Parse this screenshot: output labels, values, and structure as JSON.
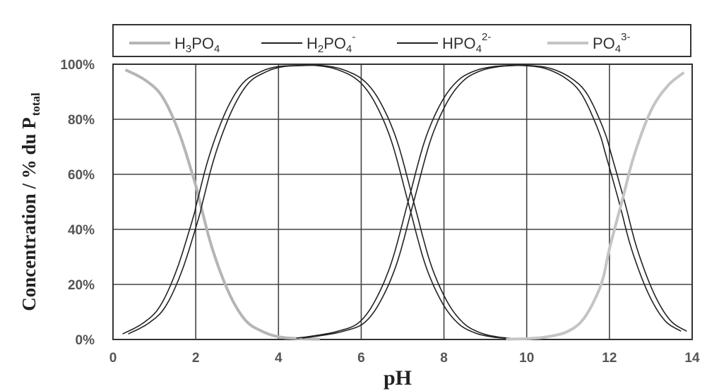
{
  "chart_data": {
    "type": "line",
    "title": "",
    "xlabel": "pH",
    "ylabel": "Concentration / % du P total",
    "ylabel_main": "Concentration / % du P",
    "ylabel_sub": "total",
    "xlim": [
      0,
      14
    ],
    "ylim": [
      0,
      100
    ],
    "x_ticks": [
      "0",
      "2",
      "4",
      "6",
      "8",
      "10",
      "12",
      "14"
    ],
    "y_ticks": [
      "0%",
      "20%",
      "40%",
      "60%",
      "80%",
      "100%"
    ],
    "grid": true,
    "legend_position": "top",
    "legend": [
      {
        "base": "H",
        "sub1": "3",
        "mid": "PO",
        "sub2": "4",
        "sup": ""
      },
      {
        "base": "H",
        "sub1": "2",
        "mid": "PO",
        "sub2": "4",
        "sup": "-"
      },
      {
        "base": "",
        "sub1": "",
        "mid": "HPO",
        "sub2": "4",
        "sup": "2-"
      },
      {
        "base": "",
        "sub1": "",
        "mid": "PO",
        "sub2": "4",
        "sup": "3-"
      }
    ],
    "pKa": [
      2.1,
      7.2,
      12.3
    ],
    "series": [
      {
        "name": "H3PO4",
        "color": "#b5b5b5",
        "x": [
          0.3,
          0.8,
          1.2,
          1.6,
          2.0,
          2.1,
          2.4,
          2.8,
          3.2,
          3.6,
          4.0,
          4.5,
          5.0
        ],
        "values": [
          98,
          94,
          88,
          75,
          56,
          50,
          33,
          17,
          7,
          3,
          1,
          0.3,
          0.1
        ]
      },
      {
        "name": "H2PO4-",
        "color": "#222222",
        "x": [
          0.3,
          0.8,
          1.2,
          1.6,
          2.0,
          2.1,
          2.4,
          2.8,
          3.2,
          3.6,
          4.0,
          4.5,
          5.0,
          5.5,
          6.0,
          6.4,
          6.8,
          7.2,
          7.6,
          8.0,
          8.4,
          8.8,
          9.2,
          9.6,
          10.0
        ],
        "values": [
          2,
          6,
          12,
          25,
          44,
          50,
          67,
          83,
          93,
          97,
          99,
          99.5,
          99.5,
          98,
          94,
          86,
          72,
          50,
          28,
          14,
          6,
          2.5,
          1,
          0.4,
          0.1
        ]
      },
      {
        "name": "HPO4 2-",
        "color": "#222222",
        "x": [
          4.5,
          5.0,
          5.5,
          6.0,
          6.4,
          6.8,
          7.2,
          7.6,
          8.0,
          8.4,
          8.8,
          9.2,
          9.6,
          10.0,
          10.5,
          11.0,
          11.4,
          11.8,
          12.0,
          12.3,
          12.6,
          13.0,
          13.4,
          13.8
        ],
        "values": [
          0.5,
          1.5,
          3,
          6,
          14,
          28,
          50,
          72,
          86,
          94,
          97.5,
          99,
          99.5,
          99.5,
          98.5,
          95,
          89,
          76,
          66,
          50,
          33,
          17,
          7,
          3
        ]
      },
      {
        "name": "PO4 3-",
        "color": "#c4c4c4",
        "x": [
          9.5,
          10.0,
          10.5,
          11.0,
          11.4,
          11.8,
          12.0,
          12.3,
          12.6,
          13.0,
          13.4,
          13.8
        ],
        "values": [
          0.1,
          0.3,
          1,
          3,
          8,
          20,
          33,
          50,
          67,
          83,
          92,
          97
        ]
      }
    ]
  }
}
